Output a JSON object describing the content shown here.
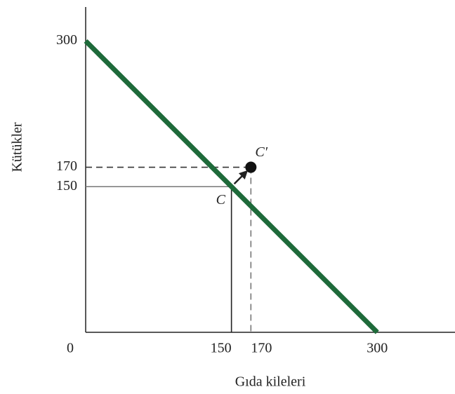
{
  "chart_data": {
    "type": "line",
    "xlabel": "Gıda kileleri",
    "ylabel": "Kütükler",
    "xlim": [
      0,
      380
    ],
    "ylim": [
      0,
      335
    ],
    "xticks": [
      0,
      150,
      170,
      300
    ],
    "yticks": [
      150,
      170,
      300
    ],
    "series": [
      {
        "color": "#1e6a3a",
        "x": [
          0,
          300
        ],
        "values": [
          300,
          0
        ]
      }
    ],
    "points": [
      {
        "label": "C",
        "x": 150,
        "y": 150,
        "marker": false,
        "guide": "solid"
      },
      {
        "label": "C′",
        "x": 170,
        "y": 170,
        "marker": true,
        "guide": "dashed"
      }
    ]
  }
}
